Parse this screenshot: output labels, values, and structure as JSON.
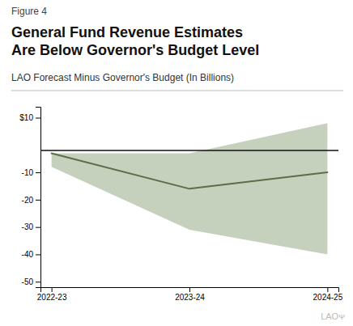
{
  "chart_data": {
    "type": "line",
    "figure_label": "Figure 4",
    "title": "General Fund Revenue Estimates\nAre Below Governor's Budget Level",
    "subtitle": "LAO Forecast Minus Governor's Budget (In Billions)",
    "credit": "LAOᴪ",
    "categories": [
      "2022-23",
      "2023-24",
      "2024-25"
    ],
    "series": [
      {
        "values": [
          -3,
          -16,
          -10
        ],
        "color": "#5a6e4a"
      }
    ],
    "band": {
      "upper": [
        -3,
        -3,
        8
      ],
      "lower": [
        -8,
        -31,
        -40
      ],
      "color": "#a8b89a"
    },
    "reference_line": {
      "value": -2,
      "color": "#111111"
    },
    "ylim": [
      -52,
      14
    ],
    "yticks": [
      {
        "value": 10,
        "label": "$10"
      },
      -10,
      -20,
      -30,
      -40,
      -50
    ],
    "grid": false
  }
}
